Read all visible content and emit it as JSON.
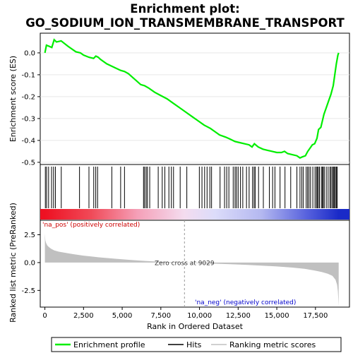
{
  "chart_data": {
    "type": "line",
    "title": "Enrichment plot:\nGO_SODIUM_ION_TRANSMEMBRANE_TRANSPORT",
    "es_panel": {
      "ylabel": "Enrichment score (ES)",
      "ylim": [
        -0.51,
        0.09
      ],
      "yticks": [
        0.0,
        -0.1,
        -0.2,
        -0.3,
        -0.4,
        -0.5
      ],
      "ytick_labels": [
        "0.0",
        "-0.1",
        "-0.2",
        "-0.3",
        "-0.4",
        "-0.5"
      ],
      "color": "#00ee00",
      "series": {
        "x": [
          0,
          100,
          450,
          600,
          750,
          1050,
          1500,
          2000,
          2300,
          2500,
          2850,
          3150,
          3300,
          3450,
          3600,
          4000,
          4300,
          4600,
          4900,
          5150,
          5400,
          5800,
          6200,
          6450,
          6700,
          7100,
          7500,
          7900,
          8300,
          8700,
          9100,
          9500,
          9900,
          10300,
          10700,
          11000,
          11300,
          11700,
          12000,
          12300,
          12600,
          12900,
          13200,
          13400,
          13550,
          13800,
          14100,
          14400,
          14700,
          15000,
          15300,
          15500,
          15700,
          16000,
          16300,
          16500,
          16650,
          16850,
          17000,
          17150,
          17300,
          17450,
          17600,
          17700,
          17850,
          17950,
          18050,
          18200,
          18350,
          18500,
          18650,
          18750,
          18850,
          18950,
          19000
        ],
        "y": [
          0.0,
          0.035,
          0.025,
          0.06,
          0.05,
          0.055,
          0.03,
          0.005,
          0.0,
          -0.01,
          -0.02,
          -0.025,
          -0.015,
          -0.02,
          -0.03,
          -0.05,
          -0.06,
          -0.07,
          -0.08,
          -0.085,
          -0.095,
          -0.12,
          -0.145,
          -0.15,
          -0.16,
          -0.18,
          -0.195,
          -0.21,
          -0.23,
          -0.25,
          -0.27,
          -0.29,
          -0.31,
          -0.33,
          -0.345,
          -0.36,
          -0.375,
          -0.385,
          -0.395,
          -0.405,
          -0.41,
          -0.415,
          -0.42,
          -0.43,
          -0.415,
          -0.43,
          -0.44,
          -0.445,
          -0.45,
          -0.455,
          -0.455,
          -0.45,
          -0.46,
          -0.465,
          -0.47,
          -0.48,
          -0.475,
          -0.47,
          -0.45,
          -0.435,
          -0.42,
          -0.415,
          -0.39,
          -0.35,
          -0.34,
          -0.31,
          -0.28,
          -0.25,
          -0.22,
          -0.19,
          -0.15,
          -0.1,
          -0.05,
          -0.01,
          0.0
        ]
      }
    },
    "hits": [
      30,
      110,
      240,
      430,
      560,
      680,
      1060,
      2240,
      2850,
      3160,
      3290,
      3410,
      4330,
      4900,
      5150,
      6380,
      6450,
      6550,
      6630,
      6780,
      7330,
      7590,
      7760,
      8020,
      8180,
      8320,
      8750,
      9180,
      9990,
      10160,
      10330,
      10490,
      10670,
      10780,
      11330,
      11620,
      11760,
      11900,
      12180,
      12300,
      12390,
      12500,
      12650,
      12800,
      13040,
      13210,
      13430,
      13530,
      13600,
      13820,
      14130,
      14520,
      14730,
      14880,
      15210,
      15530,
      15900,
      16300,
      16500,
      16620,
      16720,
      16900,
      16990,
      17080,
      17180,
      17330,
      17470,
      17560,
      17620,
      17690,
      17760,
      17880,
      17950,
      18000,
      18070,
      18200,
      18320,
      18440,
      18510,
      18600,
      18660,
      18720,
      18790,
      18850,
      18910
    ],
    "heat_band": {
      "stops": [
        {
          "rank": 0,
          "color": "#ee1122"
        },
        {
          "rank": 3000,
          "color": "#f04a58"
        },
        {
          "rank": 6000,
          "color": "#f5a0b8"
        },
        {
          "rank": 9000,
          "color": "#f4dcef"
        },
        {
          "rank": 11000,
          "color": "#dcdcfa"
        },
        {
          "rank": 14000,
          "color": "#b4b8f0"
        },
        {
          "rank": 17000,
          "color": "#5560dd"
        },
        {
          "rank": 19000,
          "color": "#1a2ac8"
        }
      ]
    },
    "metric_panel": {
      "ylabel": "Ranked list metric (PreRanked)",
      "ylim": [
        -4.0,
        3.8
      ],
      "yticks": [
        2.5,
        0.0,
        -2.5
      ],
      "ytick_labels": [
        "2.5",
        "0.0",
        "-2.5"
      ],
      "fill_color": "#c0c0c0",
      "series": {
        "x": [
          0,
          30,
          80,
          150,
          250,
          400,
          600,
          900,
          1300,
          1800,
          2500,
          3500,
          4500,
          5500,
          6500,
          7500,
          8500,
          9029,
          10000,
          11000,
          12000,
          13000,
          14000,
          15000,
          16000,
          16800,
          17400,
          17900,
          18300,
          18600,
          18800,
          18900,
          18950,
          19000
        ],
        "y": [
          2.6,
          2.0,
          1.75,
          1.55,
          1.4,
          1.25,
          1.1,
          0.98,
          0.88,
          0.76,
          0.62,
          0.47,
          0.35,
          0.24,
          0.15,
          0.08,
          0.03,
          0.0,
          -0.05,
          -0.1,
          -0.15,
          -0.2,
          -0.27,
          -0.35,
          -0.45,
          -0.56,
          -0.7,
          -0.85,
          -1.0,
          -1.2,
          -1.55,
          -2.0,
          -2.6,
          -3.9
        ]
      },
      "zero_cross": 9029,
      "zero_cross_label": "Zero cross at 9029",
      "pos_label": "'na_pos' (positively correlated)",
      "neg_label": "'na_neg' (negatively correlated)",
      "pos_color": "#cc0000",
      "neg_color": "#0000cc"
    },
    "xlabel": "Rank in Ordered Dataset",
    "xlim": [
      -300,
      19700
    ],
    "xticks": [
      0,
      2500,
      5000,
      7500,
      10000,
      12500,
      15000,
      17500
    ],
    "xtick_labels": [
      "0",
      "2,500",
      "5,000",
      "7,500",
      "10,000",
      "12,500",
      "15,000",
      "17,500"
    ],
    "legend": [
      {
        "label": "Enrichment profile",
        "color": "#00ee00"
      },
      {
        "label": "Hits",
        "color": "#000000"
      },
      {
        "label": "Ranking metric scores",
        "color": "#c0c0c0"
      }
    ]
  }
}
